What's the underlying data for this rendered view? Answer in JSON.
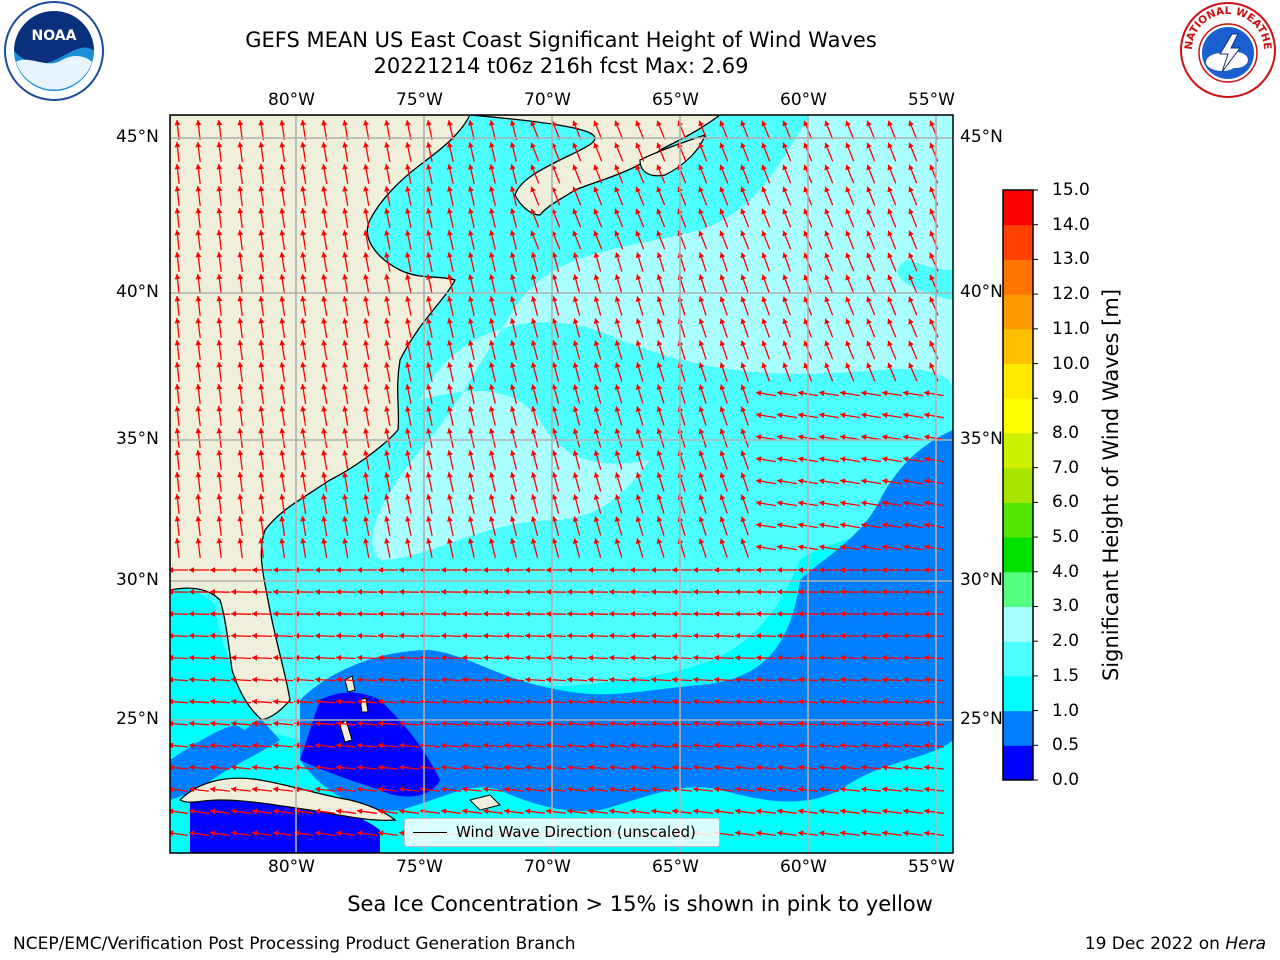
{
  "title": {
    "line1": "GEFS MEAN US East Coast Significant Height of Wind Waves",
    "line2": "20221214 t06z 216h fcst   Max: 2.69"
  },
  "map": {
    "lon_labels": [
      "80°W",
      "75°W",
      "70°W",
      "65°W",
      "60°W",
      "55°W"
    ],
    "lat_labels": [
      "45°N",
      "40°N",
      "35°N",
      "30°N",
      "25°N"
    ],
    "colors": {
      "land": "#efefdc",
      "coast": "#000000",
      "grid": "#b0b0b0",
      "arrow": "#ff0000",
      "lowest": "#0000ff"
    }
  },
  "legend": {
    "label": "Wind Wave Direction (unscaled)"
  },
  "colorbar": {
    "title": "Significant Height of Wind Waves [m]",
    "ticks": [
      "0.0",
      "0.5",
      "1.0",
      "1.5",
      "2.0",
      "3.0",
      "4.0",
      "5.0",
      "6.0",
      "7.0",
      "8.0",
      "9.0",
      "10.0",
      "11.0",
      "12.0",
      "13.0",
      "14.0",
      "15.0"
    ],
    "colors": [
      "#0000ff",
      "#0080ff",
      "#00ffff",
      "#4dffff",
      "#aaffff",
      "#55ff80",
      "#00e100",
      "#55e600",
      "#a6e600",
      "#ccf200",
      "#ffff00",
      "#ffea00",
      "#ffc000",
      "#ff9900",
      "#ff7300",
      "#ff4000",
      "#ff0000"
    ]
  },
  "footer": {
    "note": "Sea Ice Concentration > 15% is shown in pink to yellow",
    "left": "NCEP/EMC/Verification Post Processing Product Generation Branch",
    "date": "19 Dec 2022 on ",
    "machine": "Hera"
  },
  "logos": {
    "left": "NOAA",
    "right": "NATIONAL WEATHER SERVICE"
  }
}
